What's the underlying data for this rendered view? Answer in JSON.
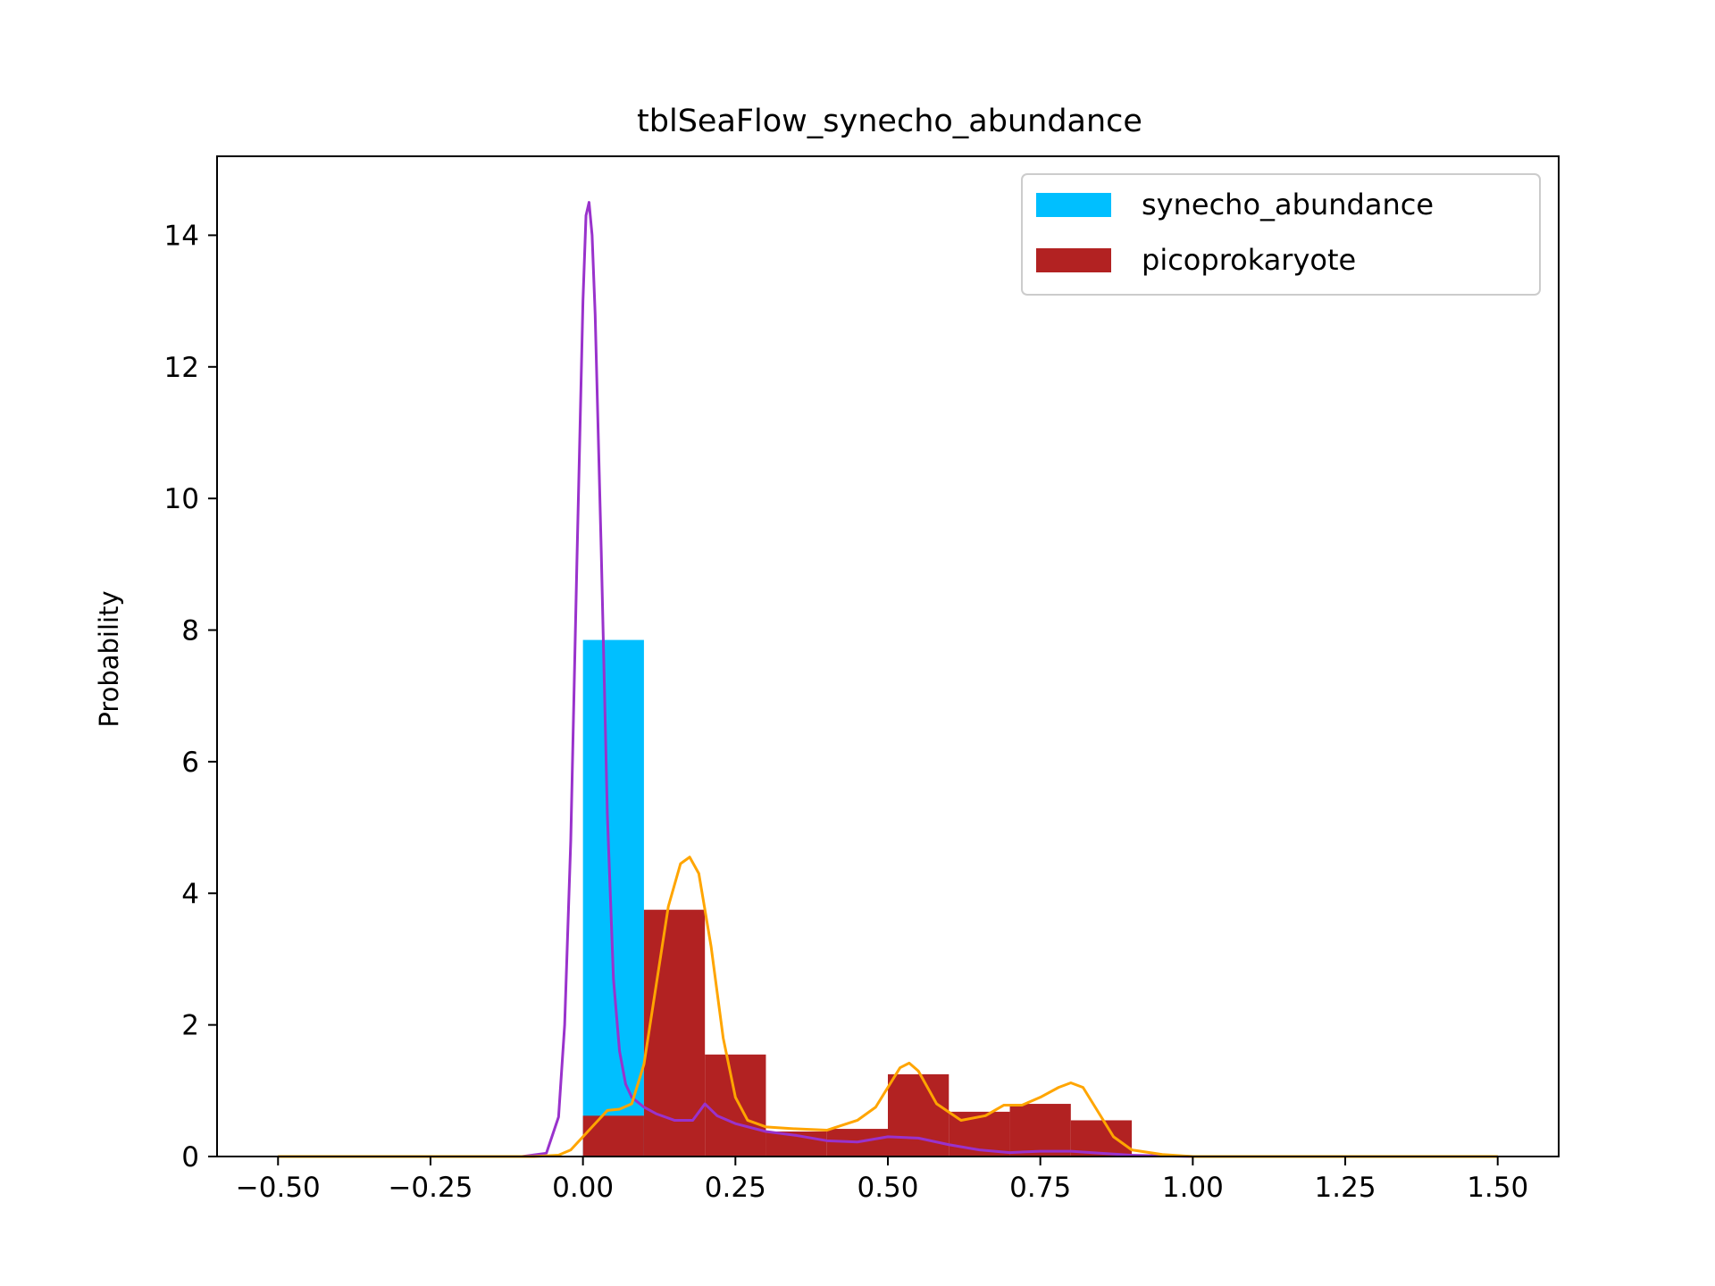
{
  "chart_data": {
    "type": "histogram",
    "title": "tblSeaFlow_synecho_abundance",
    "xlabel": "",
    "ylabel": "Probability",
    "xlim": [
      -0.6,
      1.6
    ],
    "ylim": [
      0,
      15.2
    ],
    "grid": false,
    "legend_position": "top-right",
    "x_ticks": [
      "−0.50",
      "−0.25",
      "0.00",
      "0.25",
      "0.50",
      "0.75",
      "1.00",
      "1.25",
      "1.50"
    ],
    "x_tick_values": [
      -0.5,
      -0.25,
      0.0,
      0.25,
      0.5,
      0.75,
      1.0,
      1.25,
      1.5
    ],
    "y_ticks": [
      "0",
      "2",
      "4",
      "6",
      "8",
      "10",
      "12",
      "14"
    ],
    "y_tick_values": [
      0,
      2,
      4,
      6,
      8,
      10,
      12,
      14
    ],
    "series": [
      {
        "name": "synecho_abundance",
        "kind": "hist",
        "color": "#00bfff",
        "bins": [
          {
            "x0": 0.0,
            "x1": 0.1,
            "value": 7.85
          }
        ]
      },
      {
        "name": "picoprokaryote",
        "kind": "hist",
        "color": "#b22222",
        "bins": [
          {
            "x0": 0.0,
            "x1": 0.1,
            "value": 0.62
          },
          {
            "x0": 0.1,
            "x1": 0.2,
            "value": 3.75
          },
          {
            "x0": 0.2,
            "x1": 0.3,
            "value": 1.55
          },
          {
            "x0": 0.3,
            "x1": 0.4,
            "value": 0.38
          },
          {
            "x0": 0.4,
            "x1": 0.5,
            "value": 0.42
          },
          {
            "x0": 0.5,
            "x1": 0.6,
            "value": 1.25
          },
          {
            "x0": 0.6,
            "x1": 0.7,
            "value": 0.68
          },
          {
            "x0": 0.7,
            "x1": 0.8,
            "value": 0.8
          },
          {
            "x0": 0.8,
            "x1": 0.9,
            "value": 0.55
          }
        ]
      },
      {
        "kind": "kde",
        "color": "#9932cc",
        "x": [
          -0.5,
          -0.1,
          -0.06,
          -0.04,
          -0.03,
          -0.02,
          -0.01,
          0.0,
          0.005,
          0.01,
          0.015,
          0.02,
          0.03,
          0.04,
          0.05,
          0.06,
          0.07,
          0.08,
          0.1,
          0.12,
          0.15,
          0.18,
          0.2,
          0.22,
          0.25,
          0.3,
          0.35,
          0.4,
          0.45,
          0.5,
          0.55,
          0.6,
          0.65,
          0.7,
          0.75,
          0.8,
          0.85,
          0.9,
          1.0,
          1.5
        ],
        "y": [
          0,
          0,
          0.05,
          0.6,
          2.0,
          4.8,
          9.0,
          13.0,
          14.3,
          14.5,
          14.0,
          12.8,
          9.2,
          5.2,
          2.7,
          1.6,
          1.1,
          0.9,
          0.75,
          0.65,
          0.55,
          0.55,
          0.8,
          0.62,
          0.5,
          0.38,
          0.32,
          0.24,
          0.22,
          0.3,
          0.28,
          0.18,
          0.1,
          0.06,
          0.08,
          0.08,
          0.05,
          0.02,
          0,
          0
        ]
      },
      {
        "kind": "kde",
        "color": "#ffa500",
        "x": [
          -0.5,
          -0.08,
          -0.04,
          -0.02,
          0.0,
          0.02,
          0.04,
          0.06,
          0.08,
          0.1,
          0.12,
          0.14,
          0.16,
          0.175,
          0.19,
          0.21,
          0.23,
          0.25,
          0.27,
          0.3,
          0.35,
          0.4,
          0.45,
          0.48,
          0.5,
          0.52,
          0.535,
          0.55,
          0.58,
          0.62,
          0.66,
          0.69,
          0.72,
          0.75,
          0.78,
          0.8,
          0.82,
          0.84,
          0.87,
          0.9,
          0.95,
          1.0,
          1.5
        ],
        "y": [
          0,
          0,
          0.02,
          0.1,
          0.3,
          0.5,
          0.7,
          0.72,
          0.8,
          1.4,
          2.6,
          3.8,
          4.45,
          4.55,
          4.3,
          3.2,
          1.8,
          0.9,
          0.55,
          0.45,
          0.42,
          0.4,
          0.55,
          0.75,
          1.05,
          1.35,
          1.42,
          1.3,
          0.8,
          0.55,
          0.62,
          0.78,
          0.78,
          0.9,
          1.05,
          1.12,
          1.05,
          0.75,
          0.3,
          0.1,
          0.03,
          0,
          0
        ]
      }
    ]
  }
}
